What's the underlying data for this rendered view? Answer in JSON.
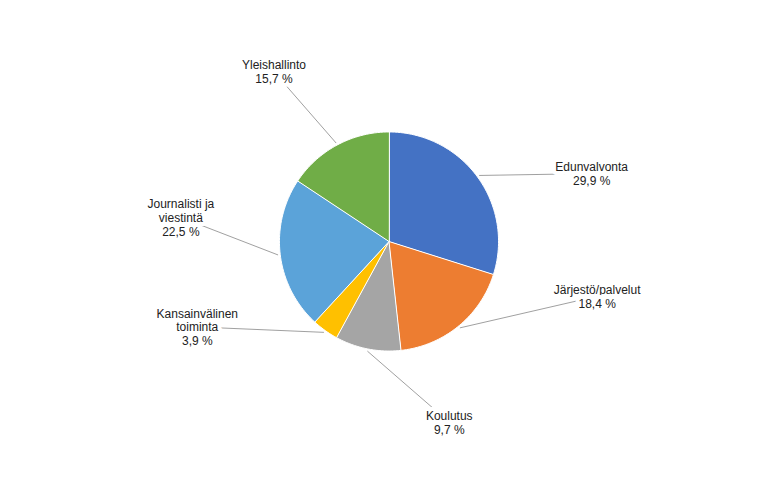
{
  "chart_data": {
    "type": "pie",
    "categories": [
      "Edunvalvonta",
      "Järjestö/palvelut",
      "Koulutus",
      "Kansainvälinen\ntoiminta",
      "Journalisti ja\nviestintä",
      "Yleishallinto"
    ],
    "values": [
      29.9,
      18.4,
      9.7,
      3.9,
      22.5,
      15.7
    ],
    "value_labels": [
      "29,9 %",
      "18,4 %",
      "9,7 %",
      "3,9 %",
      "22,5 %",
      "15,7 %"
    ],
    "colors": [
      "#4472C4",
      "#ED7D31",
      "#A5A5A5",
      "#FFC000",
      "#5BA3D9",
      "#70AD47"
    ],
    "data_labels": true
  }
}
